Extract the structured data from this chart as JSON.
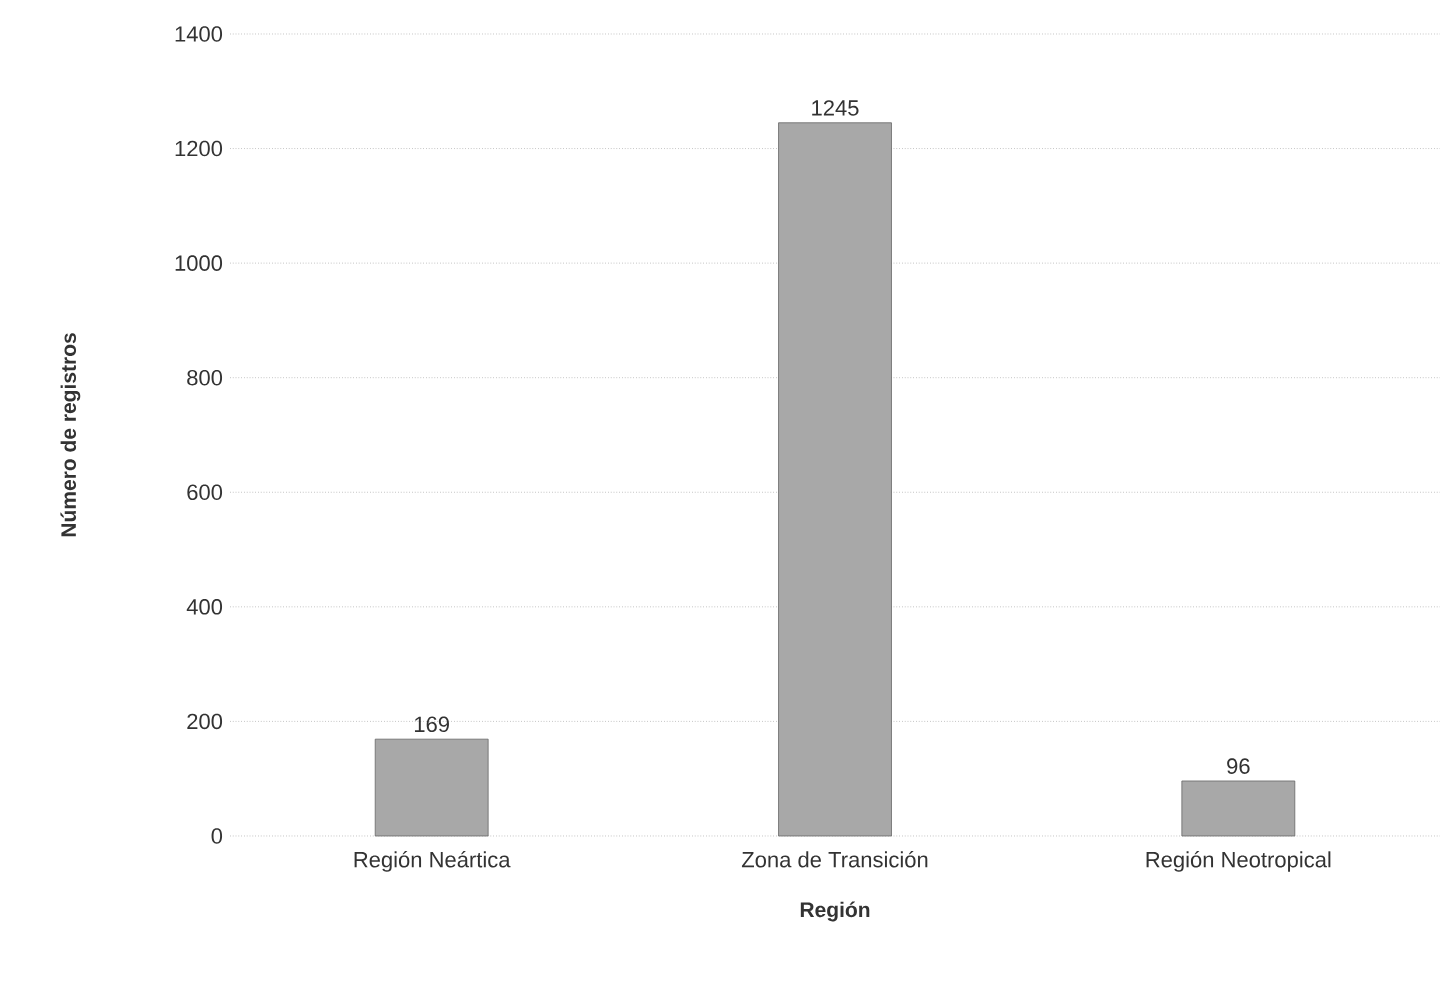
{
  "chart_data": {
    "type": "bar",
    "xlabel": "Región",
    "ylabel": "Número de registros",
    "categories": [
      "Región Neártica",
      "Zona de Transición",
      "Región Neotropical"
    ],
    "values": [
      169,
      1245,
      96
    ],
    "color": "#a8a8a8",
    "ylim": [
      0,
      1400
    ],
    "yticks": [
      0,
      200,
      400,
      600,
      800,
      1000,
      1200,
      1400
    ],
    "grid": "y",
    "data_labels": true
  }
}
